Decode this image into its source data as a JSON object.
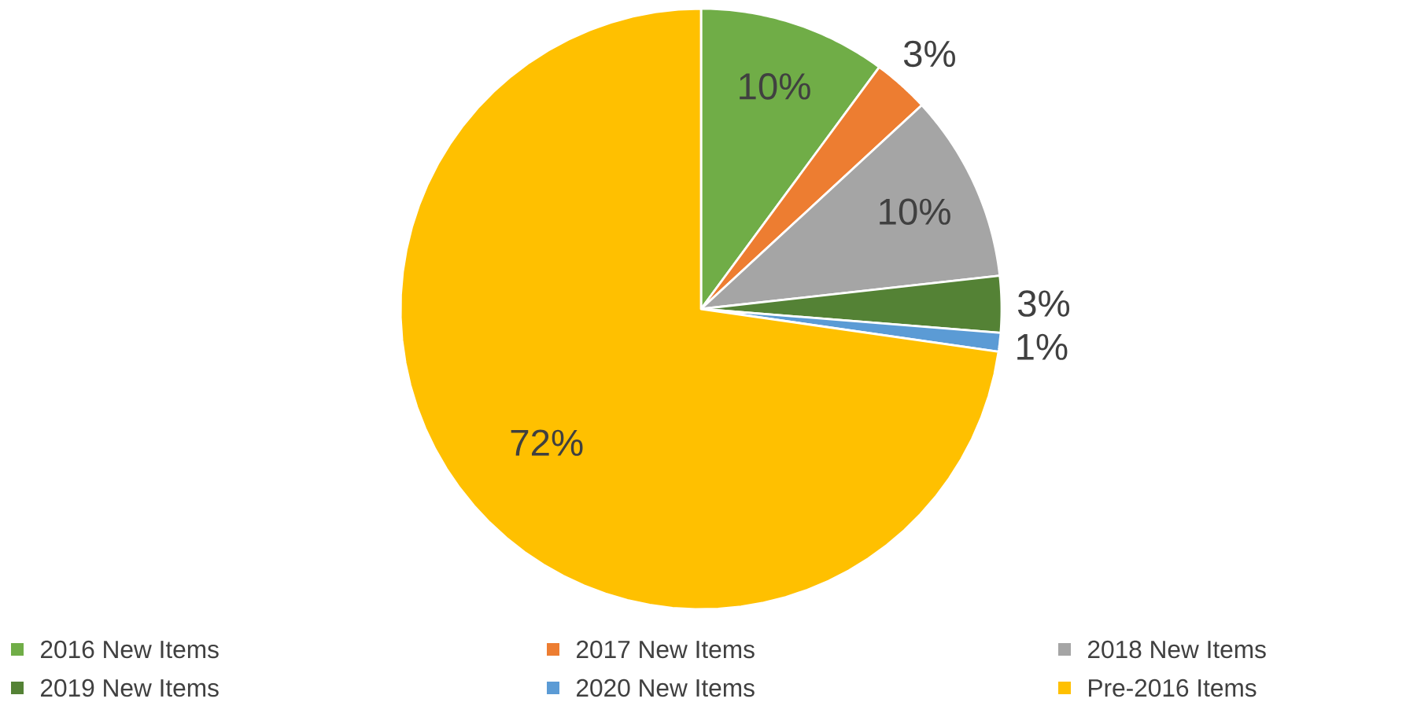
{
  "chart_data": {
    "type": "pie",
    "categories": [
      "2016 New Items",
      "2017 New Items",
      "2018 New Items",
      "2019 New Items",
      "2020 New Items",
      "Pre-2016 Items"
    ],
    "values": [
      10,
      3,
      10,
      3,
      1,
      72
    ],
    "value_labels": [
      "10%",
      "3%",
      "10%",
      "3%",
      "1%",
      "72%"
    ],
    "colors": [
      "#70ad47",
      "#ed7d31",
      "#a5a5a5",
      "#548235",
      "#5b9bd5",
      "#ffc000"
    ],
    "legend": "bottom"
  }
}
